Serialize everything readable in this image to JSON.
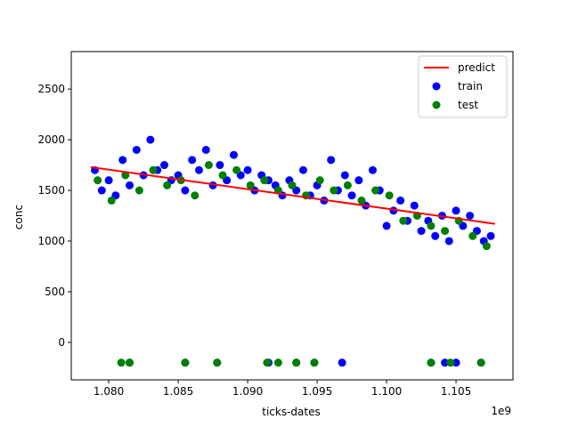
{
  "chart_data": {
    "type": "scatter",
    "xlabel": "ticks-dates",
    "ylabel": "conc",
    "x_offset_label": "1e9",
    "xlim": [
      1077300000,
      1109100000
    ],
    "ylim": [
      -370,
      2870
    ],
    "x_ticks": [
      1080000000,
      1085000000,
      1090000000,
      1095000000,
      1100000000,
      1105000000
    ],
    "x_tick_labels": [
      "1.080",
      "1.085",
      "1.090",
      "1.095",
      "1.100",
      "1.105"
    ],
    "y_ticks": [
      0,
      500,
      1000,
      1500,
      2000,
      2500
    ],
    "y_tick_labels": [
      "0",
      "500",
      "1000",
      "1500",
      "2000",
      "2500"
    ],
    "grid": false,
    "legend_position": "top-right",
    "legend": [
      "predict",
      "train",
      "test"
    ],
    "colors": {
      "predict": "#ff0000",
      "train": "#0000ff",
      "test": "#008000"
    },
    "series": [
      {
        "name": "predict",
        "kind": "line",
        "x": [
          1078700000,
          1107800000
        ],
        "y": [
          1730,
          1170
        ]
      },
      {
        "name": "train",
        "kind": "scatter",
        "x": [
          1079000000,
          1079500000,
          1080000000,
          1080500000,
          1081000000,
          1081500000,
          1082000000,
          1082500000,
          1083000000,
          1083500000,
          1084000000,
          1084500000,
          1085000000,
          1085500000,
          1086000000,
          1086500000,
          1087000000,
          1087500000,
          1088000000,
          1088500000,
          1089000000,
          1089500000,
          1090000000,
          1090500000,
          1091000000,
          1091500000,
          1092000000,
          1092500000,
          1093000000,
          1093500000,
          1094000000,
          1094500000,
          1095000000,
          1095500000,
          1096000000,
          1096500000,
          1097000000,
          1097500000,
          1098000000,
          1098500000,
          1099000000,
          1099500000,
          1100000000,
          1100500000,
          1101000000,
          1101500000,
          1102000000,
          1102500000,
          1103000000,
          1103500000,
          1104000000,
          1104500000,
          1105000000,
          1105500000,
          1106000000,
          1106500000,
          1107000000,
          1107500000,
          1081500000,
          1085500000,
          1087800000,
          1091500000,
          1093500000,
          1094800000,
          1096800000,
          1103200000,
          1104200000,
          1105000000,
          1106800000
        ],
        "y": [
          1700,
          1500,
          1600,
          1450,
          1800,
          1550,
          1900,
          1650,
          2000,
          1700,
          1750,
          1600,
          1650,
          1500,
          1800,
          1700,
          1900,
          1550,
          1750,
          1600,
          1850,
          1650,
          1700,
          1500,
          1650,
          1600,
          1550,
          1450,
          1600,
          1500,
          1700,
          1450,
          1550,
          1400,
          1800,
          1500,
          1650,
          1450,
          1600,
          1350,
          1700,
          1500,
          1150,
          1300,
          1400,
          1200,
          1350,
          1100,
          1200,
          1050,
          1250,
          1000,
          1300,
          1150,
          1250,
          1100,
          1000,
          1050,
          -200,
          -200,
          -200,
          -200,
          -200,
          -200,
          -200,
          -200,
          -200,
          -200,
          -200
        ]
      },
      {
        "name": "test",
        "kind": "scatter",
        "x": [
          1079200000,
          1080200000,
          1081200000,
          1082200000,
          1083200000,
          1084200000,
          1085200000,
          1086200000,
          1087200000,
          1088200000,
          1089200000,
          1090200000,
          1091200000,
          1092200000,
          1093200000,
          1094200000,
          1095200000,
          1096200000,
          1097200000,
          1098200000,
          1099200000,
          1100200000,
          1101200000,
          1102200000,
          1103200000,
          1104200000,
          1105200000,
          1106200000,
          1107200000,
          1080900000,
          1081500000,
          1085500000,
          1087800000,
          1091400000,
          1092200000,
          1093500000,
          1094800000,
          1103200000,
          1104600000,
          1106800000
        ],
        "y": [
          1600,
          1400,
          1650,
          1500,
          1700,
          1550,
          1600,
          1450,
          1750,
          1650,
          1700,
          1550,
          1600,
          1500,
          1550,
          1450,
          1600,
          1500,
          1550,
          1400,
          1500,
          1450,
          1200,
          1250,
          1150,
          1100,
          1200,
          1050,
          950,
          -200,
          -200,
          -200,
          -200,
          -200,
          -200,
          -200,
          -200,
          -200,
          -200,
          -200
        ]
      }
    ]
  }
}
